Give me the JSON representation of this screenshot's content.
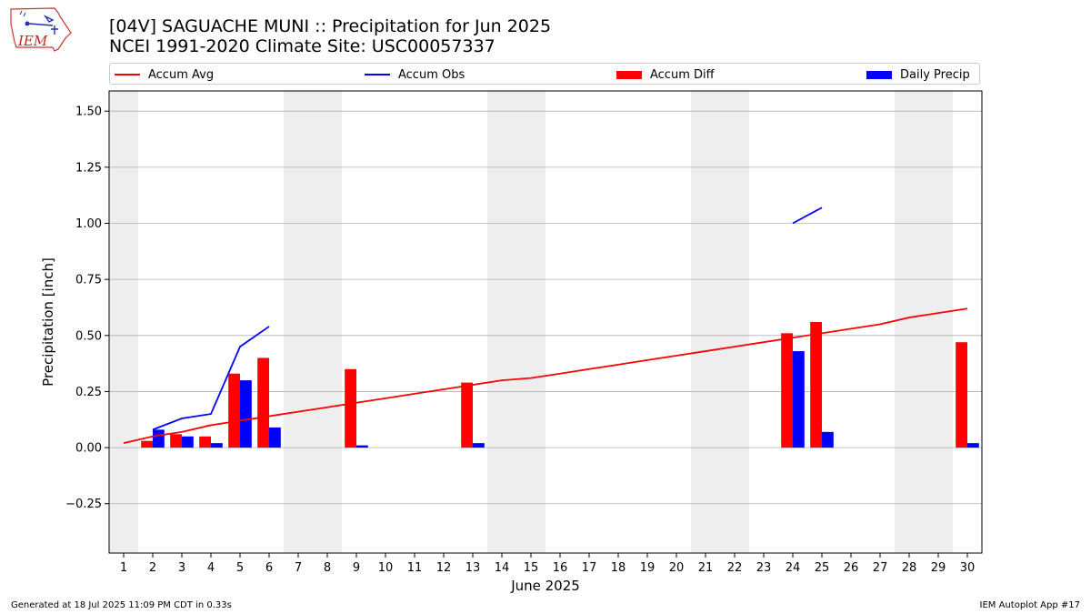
{
  "header": {
    "title_line1": "[04V] SAGUACHE MUNI :: Precipitation for Jun 2025",
    "title_line2": "NCEI 1991-2020 Climate Site: USC00057337"
  },
  "logo": {
    "text": "IEM"
  },
  "footer": {
    "left": "Generated at 18 Jul 2025 11:09 PM CDT in 0.33s",
    "right": "IEM Autoplot App #17"
  },
  "colors": {
    "accum_avg": "#ff0000",
    "accum_obs": "#0000ff",
    "accum_diff": "#ff0000",
    "daily_precip": "#0000ff",
    "weekend_shade": "#eeeeee",
    "grid": "#b0b0b0"
  },
  "chart_data": {
    "type": "bar",
    "xlabel": "June 2025",
    "ylabel": "Precipitation [inch]",
    "xlim": [
      0.5,
      30.5
    ],
    "ylim": [
      -0.47,
      1.59
    ],
    "yticks": [
      -0.25,
      0.0,
      0.25,
      0.5,
      0.75,
      1.0,
      1.25,
      1.5
    ],
    "ytick_labels": [
      "−0.25",
      "0.00",
      "0.25",
      "0.50",
      "0.75",
      "1.00",
      "1.25",
      "1.50"
    ],
    "days": [
      1,
      2,
      3,
      4,
      5,
      6,
      7,
      8,
      9,
      10,
      11,
      12,
      13,
      14,
      15,
      16,
      17,
      18,
      19,
      20,
      21,
      22,
      23,
      24,
      25,
      26,
      27,
      28,
      29,
      30
    ],
    "grid": "horizontal",
    "legend_position": "top",
    "weekend_ranges": [
      [
        0.5,
        1.5
      ],
      [
        6.5,
        8.5
      ],
      [
        13.5,
        15.5
      ],
      [
        20.5,
        22.5
      ],
      [
        27.5,
        29.5
      ]
    ],
    "series": [
      {
        "name": "Accum Avg",
        "kind": "line",
        "values": [
          0.02,
          0.05,
          0.07,
          0.1,
          0.12,
          0.14,
          0.16,
          0.18,
          0.2,
          0.22,
          0.24,
          0.26,
          0.28,
          0.3,
          0.31,
          0.33,
          0.35,
          0.37,
          0.39,
          0.41,
          0.43,
          0.45,
          0.47,
          0.49,
          0.51,
          0.53,
          0.55,
          0.58,
          0.6,
          0.62
        ]
      },
      {
        "name": "Accum Obs",
        "kind": "line",
        "segments": [
          {
            "x": [
              2,
              3,
              4,
              5,
              6
            ],
            "y": [
              0.08,
              0.13,
              0.15,
              0.45,
              0.54
            ]
          },
          {
            "x": [
              24,
              25
            ],
            "y": [
              1.0,
              1.07
            ]
          }
        ]
      },
      {
        "name": "Accum Diff",
        "kind": "bar",
        "points": [
          {
            "day": 2,
            "value": 0.03
          },
          {
            "day": 3,
            "value": 0.06
          },
          {
            "day": 4,
            "value": 0.05
          },
          {
            "day": 5,
            "value": 0.33
          },
          {
            "day": 6,
            "value": 0.4
          },
          {
            "day": 9,
            "value": 0.35
          },
          {
            "day": 13,
            "value": 0.29
          },
          {
            "day": 24,
            "value": 0.51
          },
          {
            "day": 25,
            "value": 0.56
          },
          {
            "day": 30,
            "value": 0.47
          }
        ]
      },
      {
        "name": "Daily Precip",
        "kind": "bar",
        "points": [
          {
            "day": 2,
            "value": 0.08
          },
          {
            "day": 3,
            "value": 0.05
          },
          {
            "day": 4,
            "value": 0.02
          },
          {
            "day": 5,
            "value": 0.3
          },
          {
            "day": 6,
            "value": 0.09
          },
          {
            "day": 9,
            "value": 0.01
          },
          {
            "day": 13,
            "value": 0.02
          },
          {
            "day": 24,
            "value": 0.43
          },
          {
            "day": 25,
            "value": 0.07
          },
          {
            "day": 30,
            "value": 0.02
          }
        ]
      }
    ]
  }
}
